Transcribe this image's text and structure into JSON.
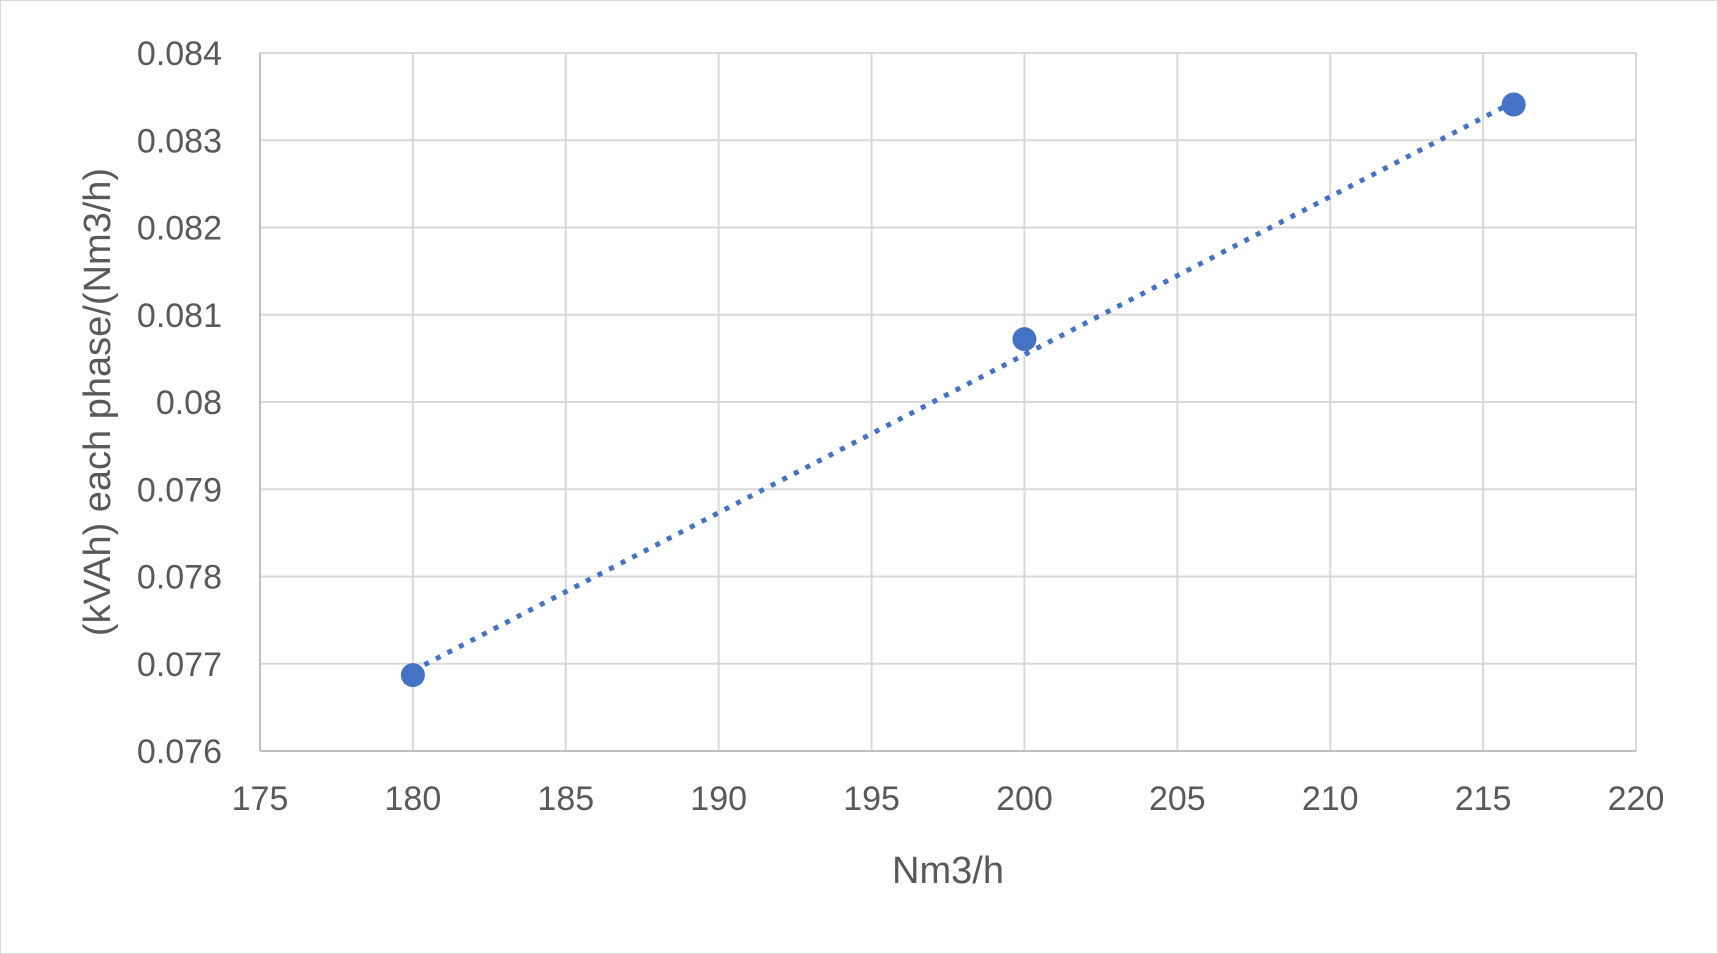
{
  "chart_data": {
    "type": "scatter",
    "title": "",
    "xlabel": "Nm3/h",
    "ylabel": "(kVAh) each phase/(Nm3/h)",
    "xlim": [
      175,
      220
    ],
    "ylim": [
      0.076,
      0.084
    ],
    "x_ticks": [
      "175",
      "180",
      "185",
      "190",
      "195",
      "200",
      "205",
      "210",
      "215",
      "220"
    ],
    "y_ticks": [
      "0.084",
      "0.083",
      "0.082",
      "0.081",
      "0.08",
      "0.079",
      "0.078",
      "0.077",
      "0.076"
    ],
    "grid": true,
    "legend": "none",
    "series": [
      {
        "x": [
          180,
          200,
          216
        ],
        "y": [
          0.07687,
          0.08072,
          0.08341
        ],
        "color": "#4472c4",
        "marker": "circle"
      }
    ],
    "trendline": {
      "type": "linear",
      "style": "dotted",
      "color": "#4472c4",
      "x": [
        180,
        216
      ],
      "y": [
        0.07692,
        0.08344
      ]
    }
  }
}
